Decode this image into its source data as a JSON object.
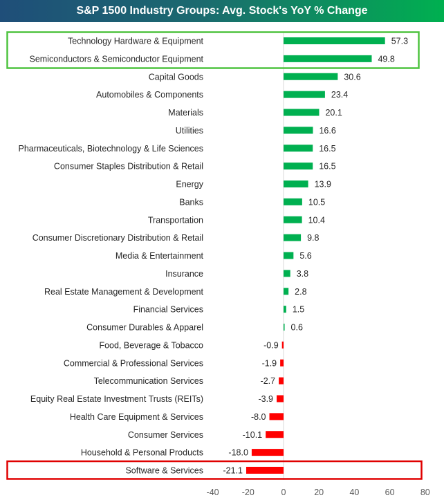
{
  "chart_data": {
    "type": "bar",
    "orientation": "horizontal",
    "title": "S&P 1500 Industry Groups: Avg. Stock's YoY % Change",
    "xlim": [
      -40,
      80
    ],
    "xticks": [
      -40,
      -20,
      0,
      20,
      40,
      60,
      80
    ],
    "grid": false,
    "colors": {
      "positive": "#00b050",
      "negative": "#ff0000",
      "title_start": "#1f4e79",
      "title_end": "#00b050",
      "highlight_top": "#4ec33f",
      "highlight_bottom": "#e00000"
    },
    "categories": [
      "Technology Hardware & Equipment",
      "Semiconductors & Semiconductor Equipment",
      "Capital Goods",
      "Automobiles & Components",
      "Materials",
      "Utilities",
      "Pharmaceuticals, Biotechnology & Life Sciences",
      "Consumer Staples Distribution & Retail",
      "Energy",
      "Banks",
      "Transportation",
      "Consumer Discretionary Distribution & Retail",
      "Media & Entertainment",
      "Insurance",
      "Real Estate Management & Development",
      "Financial Services",
      "Consumer Durables & Apparel",
      "Food, Beverage & Tobacco",
      "Commercial & Professional Services",
      "Telecommunication Services",
      "Equity Real Estate Investment Trusts (REITs)",
      "Health Care Equipment & Services",
      "Consumer Services",
      "Household & Personal Products",
      "Software & Services"
    ],
    "values": [
      57.3,
      49.8,
      30.6,
      23.4,
      20.1,
      16.6,
      16.5,
      16.5,
      13.9,
      10.5,
      10.4,
      9.8,
      5.6,
      3.8,
      2.8,
      1.5,
      0.6,
      -0.9,
      -1.9,
      -2.7,
      -3.9,
      -8.0,
      -10.1,
      -18.0,
      -21.1
    ],
    "highlighted": {
      "top": [
        0,
        1
      ],
      "bottom": [
        24
      ]
    }
  }
}
